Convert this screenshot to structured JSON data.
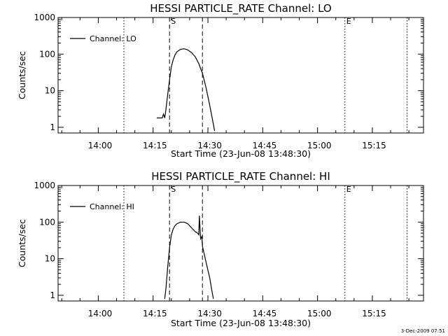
{
  "footer_timestamp": "3-Dec-2009 07:51",
  "chart_data": [
    {
      "type": "line",
      "title": "HESSI PARTICLE_RATE Channel: LO",
      "xlabel": "Start Time (23-Jun-08 13:48:30)",
      "ylabel": "Counts/sec",
      "y_scale": "log",
      "ylim": [
        0.7,
        1000
      ],
      "xlim": [
        "13:48:30",
        "15:28:30"
      ],
      "x_ticks": [
        "14:00",
        "14:15",
        "14:30",
        "14:45",
        "15:00",
        "15:15"
      ],
      "y_ticks": [
        "1",
        "10",
        "100",
        "1000"
      ],
      "legend": {
        "position": "top-left",
        "entries": [
          "Channel: LO"
        ]
      },
      "markers": [
        {
          "label": "S",
          "time": "14:19:00",
          "style": "dashed"
        },
        {
          "label": "",
          "time": "14:28:00",
          "style": "dashed"
        },
        {
          "label": "",
          "time": "14:06:30",
          "style": "dotted"
        },
        {
          "label": "E",
          "time": "15:07:00",
          "style": "dotted"
        },
        {
          "label": "",
          "time": "15:24:00",
          "style": "dotted"
        }
      ],
      "series": [
        {
          "name": "Channel: LO",
          "x": [
            "14:15:30",
            "14:16:00",
            "14:17:00",
            "14:17:20",
            "14:17:40",
            "14:18:00",
            "14:18:30",
            "14:19:00",
            "14:19:30",
            "14:20:00",
            "14:20:30",
            "14:21:00",
            "14:22:00",
            "14:23:00",
            "14:24:00",
            "14:25:00",
            "14:26:00",
            "14:27:00",
            "14:28:00",
            "14:29:00",
            "14:30:00",
            "14:30:40",
            "14:31:20"
          ],
          "y": [
            1.8,
            1.8,
            1.8,
            2.3,
            1.8,
            3,
            8,
            20,
            45,
            70,
            95,
            115,
            135,
            140,
            130,
            110,
            85,
            55,
            30,
            12,
            4,
            1.8,
            0.8
          ]
        }
      ]
    },
    {
      "type": "line",
      "title": "HESSI PARTICLE_RATE Channel: HI",
      "xlabel": "Start Time (23-Jun-08 13:48:30)",
      "ylabel": "Counts/sec",
      "y_scale": "log",
      "ylim": [
        0.7,
        1000
      ],
      "xlim": [
        "13:48:30",
        "15:28:30"
      ],
      "x_ticks": [
        "14:00",
        "14:15",
        "14:30",
        "14:45",
        "15:00",
        "15:15"
      ],
      "y_ticks": [
        "1",
        "10",
        "100",
        "1000"
      ],
      "legend": {
        "position": "top-left",
        "entries": [
          "Channel: HI"
        ]
      },
      "markers": [
        {
          "label": "S",
          "time": "14:19:00",
          "style": "dashed"
        },
        {
          "label": "",
          "time": "14:28:00",
          "style": "dashed"
        },
        {
          "label": "",
          "time": "14:06:30",
          "style": "dotted"
        },
        {
          "label": "E",
          "time": "15:07:00",
          "style": "dotted"
        },
        {
          "label": "",
          "time": "15:24:00",
          "style": "dotted"
        }
      ],
      "series": [
        {
          "name": "Channel: HI",
          "x": [
            "14:17:40",
            "14:18:00",
            "14:18:30",
            "14:19:00",
            "14:19:30",
            "14:20:00",
            "14:20:30",
            "14:21:00",
            "14:22:00",
            "14:23:00",
            "14:24:00",
            "14:25:00",
            "14:26:00",
            "14:26:40",
            "14:27:00",
            "14:27:10",
            "14:27:30",
            "14:27:50",
            "14:28:00",
            "14:29:00",
            "14:30:00",
            "14:30:30",
            "14:31:00"
          ],
          "y": [
            0.8,
            1.5,
            6,
            20,
            45,
            65,
            80,
            90,
            100,
            100,
            90,
            70,
            55,
            50,
            45,
            150,
            35,
            40,
            22,
            8,
            3,
            1.5,
            0.8
          ]
        }
      ]
    }
  ]
}
